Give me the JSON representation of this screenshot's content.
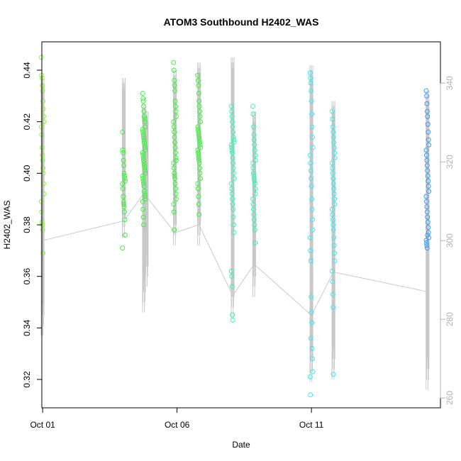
{
  "chart_data": {
    "type": "scatter",
    "title": "ATOM3 Southbound H2402_WAS",
    "xlabel": "Date",
    "ylabel": "H2402_WAS",
    "x_ticks": [
      "Oct 01",
      "Oct 06",
      "Oct 11"
    ],
    "y_ticks": [
      "0.32",
      "0.34",
      "0.36",
      "0.38",
      "0.40",
      "0.42",
      "0.44"
    ],
    "y2_ticks": [
      "260",
      "280",
      "300",
      "320",
      "340"
    ],
    "xlim": [
      0.0,
      14.83
    ],
    "ylim": [
      0.309,
      0.451
    ],
    "y2lim": [
      257.5,
      350.5
    ],
    "grid": false,
    "legend": "none",
    "colors": {
      "points_lime": "#8ef03c",
      "points_green": "#3cf03c",
      "points_teal": "#3cf0b4",
      "points_cyan": "#3ce8f0",
      "points_blue": "#3c9af0",
      "line": "#c8c8c8",
      "right_axis": "#b0b0b0"
    },
    "series": [
      {
        "x": [
          0.03,
          0.03,
          0.03,
          0.03,
          0.03,
          0.03,
          0.03,
          0.03,
          0.03,
          0.03,
          0.03,
          0.03,
          0.03,
          0.03,
          0.03,
          0.03,
          0.03,
          0.03,
          0.03,
          0.03,
          0.03,
          0.03,
          0.03,
          0.03
        ],
        "y": [
          0.445,
          0.438,
          0.437,
          0.434,
          0.432,
          0.428,
          0.425,
          0.422,
          0.42,
          0.418,
          0.415,
          0.41,
          0.407,
          0.405,
          0.402,
          0.4,
          0.396,
          0.392,
          0.389,
          0.385,
          0.381,
          0.38,
          0.378,
          0.369
        ]
      },
      {
        "x": [
          3.05,
          3.05,
          3.05,
          3.05,
          3.05,
          3.05,
          3.05,
          3.05,
          3.05,
          3.05,
          3.05,
          3.05,
          3.05,
          3.05,
          3.05,
          3.05,
          3.05,
          3.05,
          3.05
        ],
        "y": [
          0.416,
          0.409,
          0.408,
          0.405,
          0.403,
          0.4,
          0.399,
          0.398,
          0.397,
          0.396,
          0.394,
          0.391,
          0.389,
          0.388,
          0.387,
          0.385,
          0.382,
          0.376,
          0.371
        ]
      },
      {
        "x": [
          3.8,
          3.8,
          3.8,
          3.8,
          3.8,
          3.8,
          3.8,
          3.8,
          3.8,
          3.8,
          3.8,
          3.8,
          3.8,
          3.8,
          3.8,
          3.8,
          3.8,
          3.8,
          3.8,
          3.8,
          3.8,
          3.8,
          3.8,
          3.8,
          3.8,
          3.8,
          3.8,
          3.8,
          3.8,
          3.8,
          3.8,
          3.8,
          3.8,
          3.8,
          3.8,
          3.8,
          3.8,
          3.8,
          3.8,
          3.8
        ],
        "y": [
          0.431,
          0.429,
          0.428,
          0.426,
          0.424,
          0.422,
          0.421,
          0.42,
          0.418,
          0.417,
          0.416,
          0.415,
          0.414,
          0.413,
          0.412,
          0.411,
          0.41,
          0.409,
          0.408,
          0.407,
          0.406,
          0.405,
          0.404,
          0.403,
          0.402,
          0.401,
          0.4,
          0.399,
          0.398,
          0.397,
          0.396,
          0.395,
          0.393,
          0.392,
          0.391,
          0.39,
          0.389,
          0.386,
          0.383,
          0.38
        ]
      },
      {
        "x": [
          4.95,
          4.95,
          4.95,
          4.95,
          4.95,
          4.95,
          4.95,
          4.95,
          4.95,
          4.95,
          4.95,
          4.95,
          4.95,
          4.95,
          4.95,
          4.95,
          4.95,
          4.95,
          4.95,
          4.95,
          4.95,
          4.95,
          4.95,
          4.95,
          4.95,
          4.95,
          4.95,
          4.95,
          4.95,
          4.95
        ],
        "y": [
          0.443,
          0.44,
          0.436,
          0.434,
          0.432,
          0.428,
          0.426,
          0.424,
          0.422,
          0.42,
          0.418,
          0.416,
          0.414,
          0.412,
          0.41,
          0.408,
          0.406,
          0.405,
          0.404,
          0.402,
          0.4,
          0.399,
          0.398,
          0.396,
          0.394,
          0.392,
          0.39,
          0.388,
          0.385,
          0.378
        ]
      },
      {
        "x": [
          5.85,
          5.85,
          5.85,
          5.85,
          5.85,
          5.85,
          5.85,
          5.85,
          5.85,
          5.85,
          5.85,
          5.85,
          5.85,
          5.85,
          5.85,
          5.85,
          5.85,
          5.85,
          5.85,
          5.85,
          5.85,
          5.85,
          5.85,
          5.85,
          5.85,
          5.85,
          5.85,
          5.85,
          5.85,
          5.85,
          5.85,
          5.85
        ],
        "y": [
          0.438,
          0.436,
          0.434,
          0.431,
          0.428,
          0.426,
          0.424,
          0.422,
          0.42,
          0.418,
          0.417,
          0.416,
          0.415,
          0.414,
          0.413,
          0.412,
          0.411,
          0.41,
          0.409,
          0.408,
          0.407,
          0.406,
          0.405,
          0.404,
          0.402,
          0.4,
          0.398,
          0.396,
          0.394,
          0.391,
          0.388,
          0.384
        ]
      },
      {
        "x": [
          7.1,
          7.1,
          7.1,
          7.1,
          7.1,
          7.1,
          7.1,
          7.1,
          7.1,
          7.1,
          7.1,
          7.1,
          7.1,
          7.1,
          7.1,
          7.1,
          7.1,
          7.1,
          7.1,
          7.1,
          7.1,
          7.1,
          7.1,
          7.1,
          7.1,
          7.1,
          7.1,
          7.1,
          7.1,
          7.1,
          7.1,
          7.1
        ],
        "y": [
          0.426,
          0.424,
          0.422,
          0.42,
          0.418,
          0.416,
          0.414,
          0.413,
          0.412,
          0.411,
          0.41,
          0.409,
          0.408,
          0.406,
          0.404,
          0.402,
          0.4,
          0.398,
          0.396,
          0.394,
          0.392,
          0.39,
          0.388,
          0.386,
          0.383,
          0.38,
          0.377,
          0.362,
          0.36,
          0.356,
          0.345,
          0.343
        ]
      },
      {
        "x": [
          7.9,
          7.9,
          7.9,
          7.9,
          7.9,
          7.9,
          7.9,
          7.9,
          7.9,
          7.9,
          7.9,
          7.9,
          7.9,
          7.9,
          7.9,
          7.9,
          7.9,
          7.9,
          7.9,
          7.9,
          7.9,
          7.9,
          7.9,
          7.9,
          7.9,
          7.9
        ],
        "y": [
          0.426,
          0.423,
          0.418,
          0.415,
          0.413,
          0.411,
          0.409,
          0.407,
          0.405,
          0.404,
          0.402,
          0.4,
          0.399,
          0.398,
          0.397,
          0.396,
          0.394,
          0.392,
          0.39,
          0.388,
          0.386,
          0.384,
          0.382,
          0.38,
          0.378,
          0.373
        ]
      },
      {
        "x": [
          10.03,
          10.03,
          10.03,
          10.03,
          10.03,
          10.03,
          10.03,
          10.03,
          10.03,
          10.03,
          10.03,
          10.03,
          10.03,
          10.03,
          10.03,
          10.03,
          10.03,
          10.03,
          10.03,
          10.03,
          10.03,
          10.03,
          10.03,
          10.03,
          10.03,
          10.03,
          10.03,
          10.03,
          10.03,
          10.03
        ],
        "y": [
          0.439,
          0.437,
          0.435,
          0.432,
          0.428,
          0.423,
          0.418,
          0.414,
          0.41,
          0.407,
          0.404,
          0.401,
          0.398,
          0.395,
          0.39,
          0.386,
          0.382,
          0.378,
          0.375,
          0.37,
          0.366,
          0.352,
          0.346,
          0.342,
          0.332,
          0.328,
          0.323,
          0.321,
          0.314,
          0.336
        ]
      },
      {
        "x": [
          10.85,
          10.85,
          10.85,
          10.85,
          10.85,
          10.85,
          10.85,
          10.85,
          10.85,
          10.85,
          10.85,
          10.85,
          10.85,
          10.85,
          10.85,
          10.85,
          10.85,
          10.85,
          10.85,
          10.85,
          10.85,
          10.85,
          10.85,
          10.85,
          10.85,
          10.85,
          10.85,
          10.85,
          10.85,
          10.85,
          10.85,
          10.85
        ],
        "y": [
          0.424,
          0.421,
          0.418,
          0.416,
          0.414,
          0.412,
          0.41,
          0.408,
          0.406,
          0.404,
          0.402,
          0.4,
          0.398,
          0.396,
          0.394,
          0.392,
          0.39,
          0.388,
          0.386,
          0.384,
          0.382,
          0.38,
          0.378,
          0.375,
          0.372,
          0.369,
          0.366,
          0.362,
          0.358,
          0.353,
          0.348,
          0.322
        ]
      },
      {
        "x": [
          14.35,
          14.35,
          14.35,
          14.35,
          14.35,
          14.35,
          14.35,
          14.35,
          14.35,
          14.35,
          14.35,
          14.35,
          14.35,
          14.35,
          14.35,
          14.35,
          14.35,
          14.35,
          14.35,
          14.35,
          14.35,
          14.35,
          14.35,
          14.35,
          14.35,
          14.35,
          14.35,
          14.35,
          14.35,
          14.35,
          14.35,
          14.35
        ],
        "y": [
          0.432,
          0.43,
          0.427,
          0.424,
          0.422,
          0.419,
          0.416,
          0.413,
          0.411,
          0.409,
          0.407,
          0.405,
          0.403,
          0.401,
          0.399,
          0.397,
          0.395,
          0.393,
          0.391,
          0.389,
          0.387,
          0.385,
          0.383,
          0.381,
          0.379,
          0.377,
          0.375,
          0.374,
          0.373,
          0.372,
          0.371,
          0.376
        ]
      }
    ],
    "line_series": {
      "x": [
        0.03,
        3.05,
        3.8,
        4.95,
        5.85,
        7.1,
        7.9,
        10.03,
        10.85,
        14.35
      ],
      "y2": [
        300,
        305,
        312,
        302,
        304,
        286,
        294,
        281,
        292,
        287
      ]
    }
  }
}
